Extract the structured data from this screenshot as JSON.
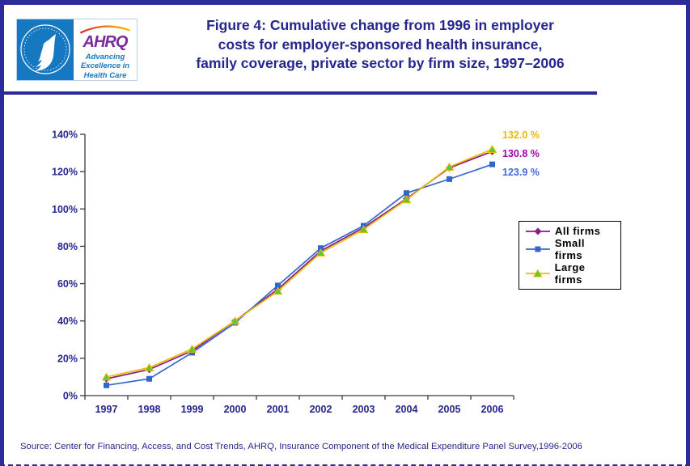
{
  "page": {
    "accent_navy": "#26268f",
    "border_color": "#2b2b99",
    "background": "#ffffff"
  },
  "header": {
    "logo": {
      "hhs_seal_name": "hhs-eagle-seal",
      "ahrq_acronym": "AHRQ",
      "tagline_lines": [
        "Advancing",
        "Excellence in",
        "Health Care"
      ],
      "ahrq_purple": "#7b2a9b",
      "hhs_blue": "#1778c2"
    },
    "title_lines": [
      "Figure 4: Cumulative change from 1996 in employer",
      "costs for employer-sponsored health insurance,",
      "family coverage, private sector by firm size, 1997–2006"
    ]
  },
  "chart_data": {
    "type": "line",
    "title": "Cumulative change from 1996 in employer costs for employer-sponsored health insurance, family coverage, private sector by firm size, 1997-2006",
    "categories": [
      "1997",
      "1998",
      "1999",
      "2000",
      "2001",
      "2002",
      "2003",
      "2004",
      "2005",
      "2006"
    ],
    "series": [
      {
        "name": "All firms",
        "values": [
          9,
          14,
          24,
          40,
          57,
          77.5,
          90,
          105.5,
          122,
          130.8
        ],
        "color": "#8b1a8b",
        "marker": "diamond",
        "end_label": "130.8 %",
        "end_label_color": "#a300a3"
      },
      {
        "name": "Small firms",
        "values": [
          5.5,
          9,
          23,
          39,
          59,
          79,
          91,
          108.5,
          116,
          123.9
        ],
        "color": "#3366cc",
        "marker": "square",
        "end_label": "123.9 %",
        "end_label_color": "#4169e1"
      },
      {
        "name": "Large firms",
        "values": [
          10,
          15,
          25,
          40,
          56,
          76.5,
          89,
          105,
          122.5,
          132.0
        ],
        "color": "#edbb00",
        "marker": "triangle",
        "marker_fill": "#55cc33",
        "end_label": "132.0 %",
        "end_label_color": "#edbb00"
      }
    ],
    "ylim": [
      0,
      140
    ],
    "y_ticks": [
      0,
      20,
      40,
      60,
      80,
      100,
      120,
      140
    ],
    "y_tick_suffix": "%",
    "xlabel": "",
    "ylabel": "",
    "grid": false,
    "legend_position": "right-middle",
    "axis_color": "#3a3a3a",
    "axis_label_color": "#26268f"
  },
  "footer": {
    "source": "Source: Center for Financing, Access, and Cost Trends, AHRQ, Insurance Component of the Medical Expenditure Panel Survey,1996-2006"
  }
}
